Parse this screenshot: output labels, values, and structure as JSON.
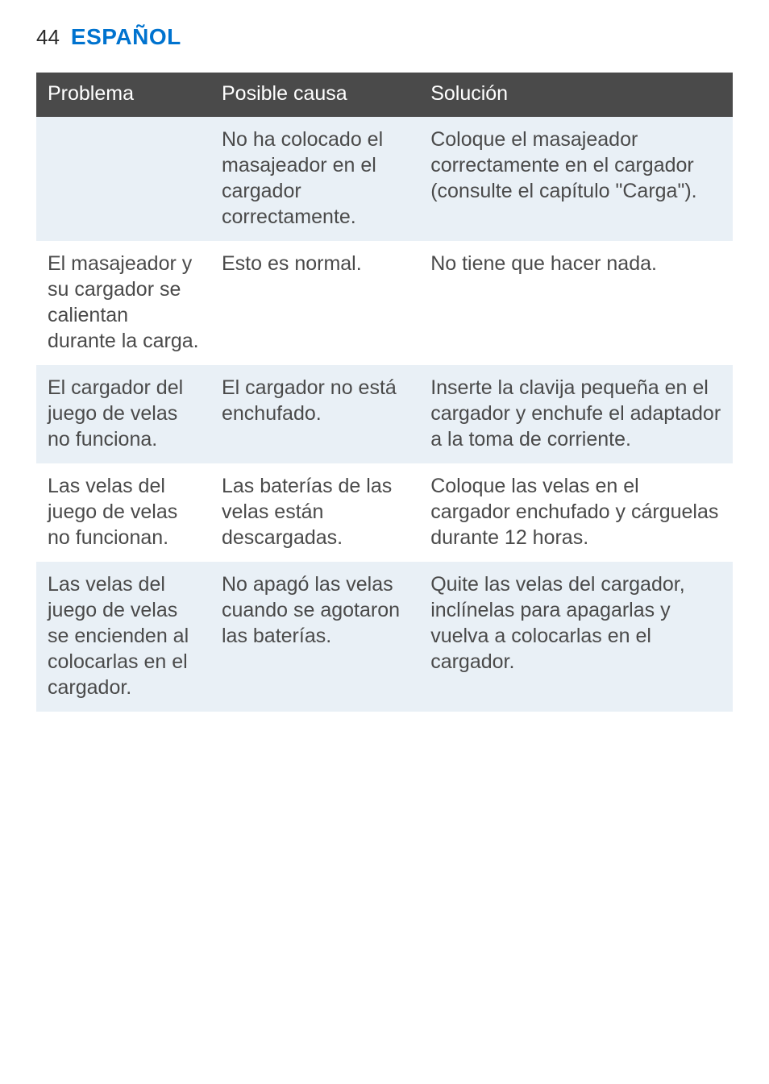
{
  "page_number": "44",
  "title": "ESPAÑOL",
  "title_color": "#0073cf",
  "header_bg": "#4a4a4a",
  "header_text_color": "#ffffff",
  "row_alt_bg": "#e9f0f6",
  "body_text_color": "#4a4a4a",
  "columns": [
    "Problema",
    "Posible causa",
    "Solución"
  ],
  "rows": [
    {
      "alt": true,
      "cells": [
        "",
        "No ha colocado el masajeador en el cargador correctamente.",
        "Coloque el masajeador correctamente en el cargador (consulte el capítulo \"Carga\")."
      ]
    },
    {
      "alt": false,
      "cells": [
        "El masajeador y su cargador se calientan durante la carga.",
        "Esto es normal.",
        "No tiene que hacer nada."
      ]
    },
    {
      "alt": true,
      "cells": [
        "El cargador del juego de velas no funciona.",
        "El cargador no está enchufado.",
        "Inserte la clavija pequeña en el cargador y enchufe el adaptador a la toma de corriente."
      ]
    },
    {
      "alt": false,
      "cells": [
        "Las velas del juego de velas no funcionan.",
        "Las baterías de las velas están descargadas.",
        "Coloque las velas en el cargador enchufado y cárguelas durante 12 horas."
      ]
    },
    {
      "alt": true,
      "cells": [
        "Las velas del juego de velas se encienden al colocarlas en el cargador.",
        "No apagó las velas cuando se agotaron las baterías.",
        "Quite las velas del cargador, inclínelas para apagarlas y vuelva a colocarlas en el cargador."
      ]
    }
  ]
}
